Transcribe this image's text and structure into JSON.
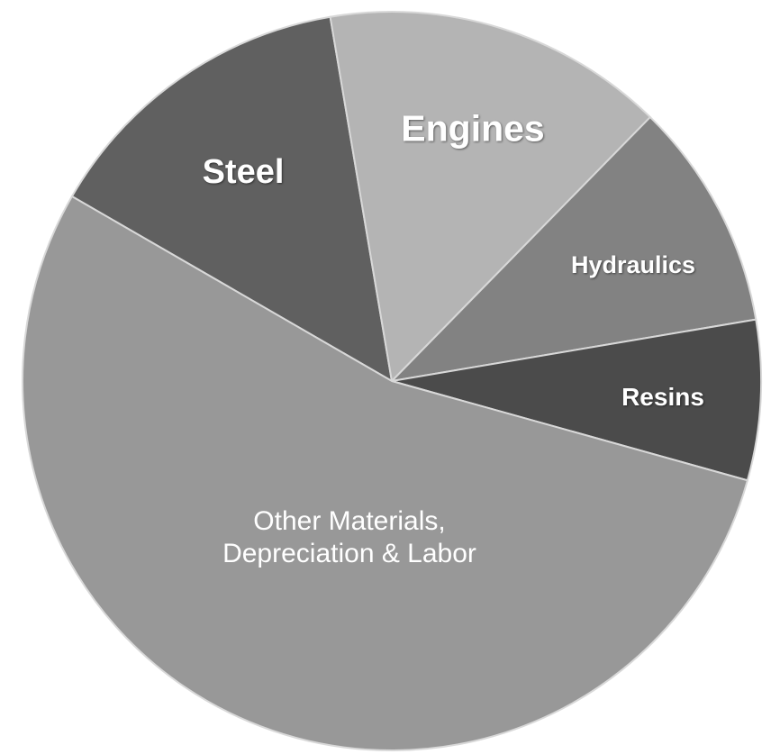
{
  "chart_data": {
    "type": "pie",
    "categories": [
      "Steel",
      "Engines",
      "Hydraulics",
      "Resins",
      "Other Materials, Depreciation & Labor"
    ],
    "values": [
      14,
      15,
      10,
      7,
      54
    ],
    "colors": [
      "#606060",
      "#b4b4b4",
      "#828282",
      "#4b4b4b",
      "#989898"
    ]
  }
}
